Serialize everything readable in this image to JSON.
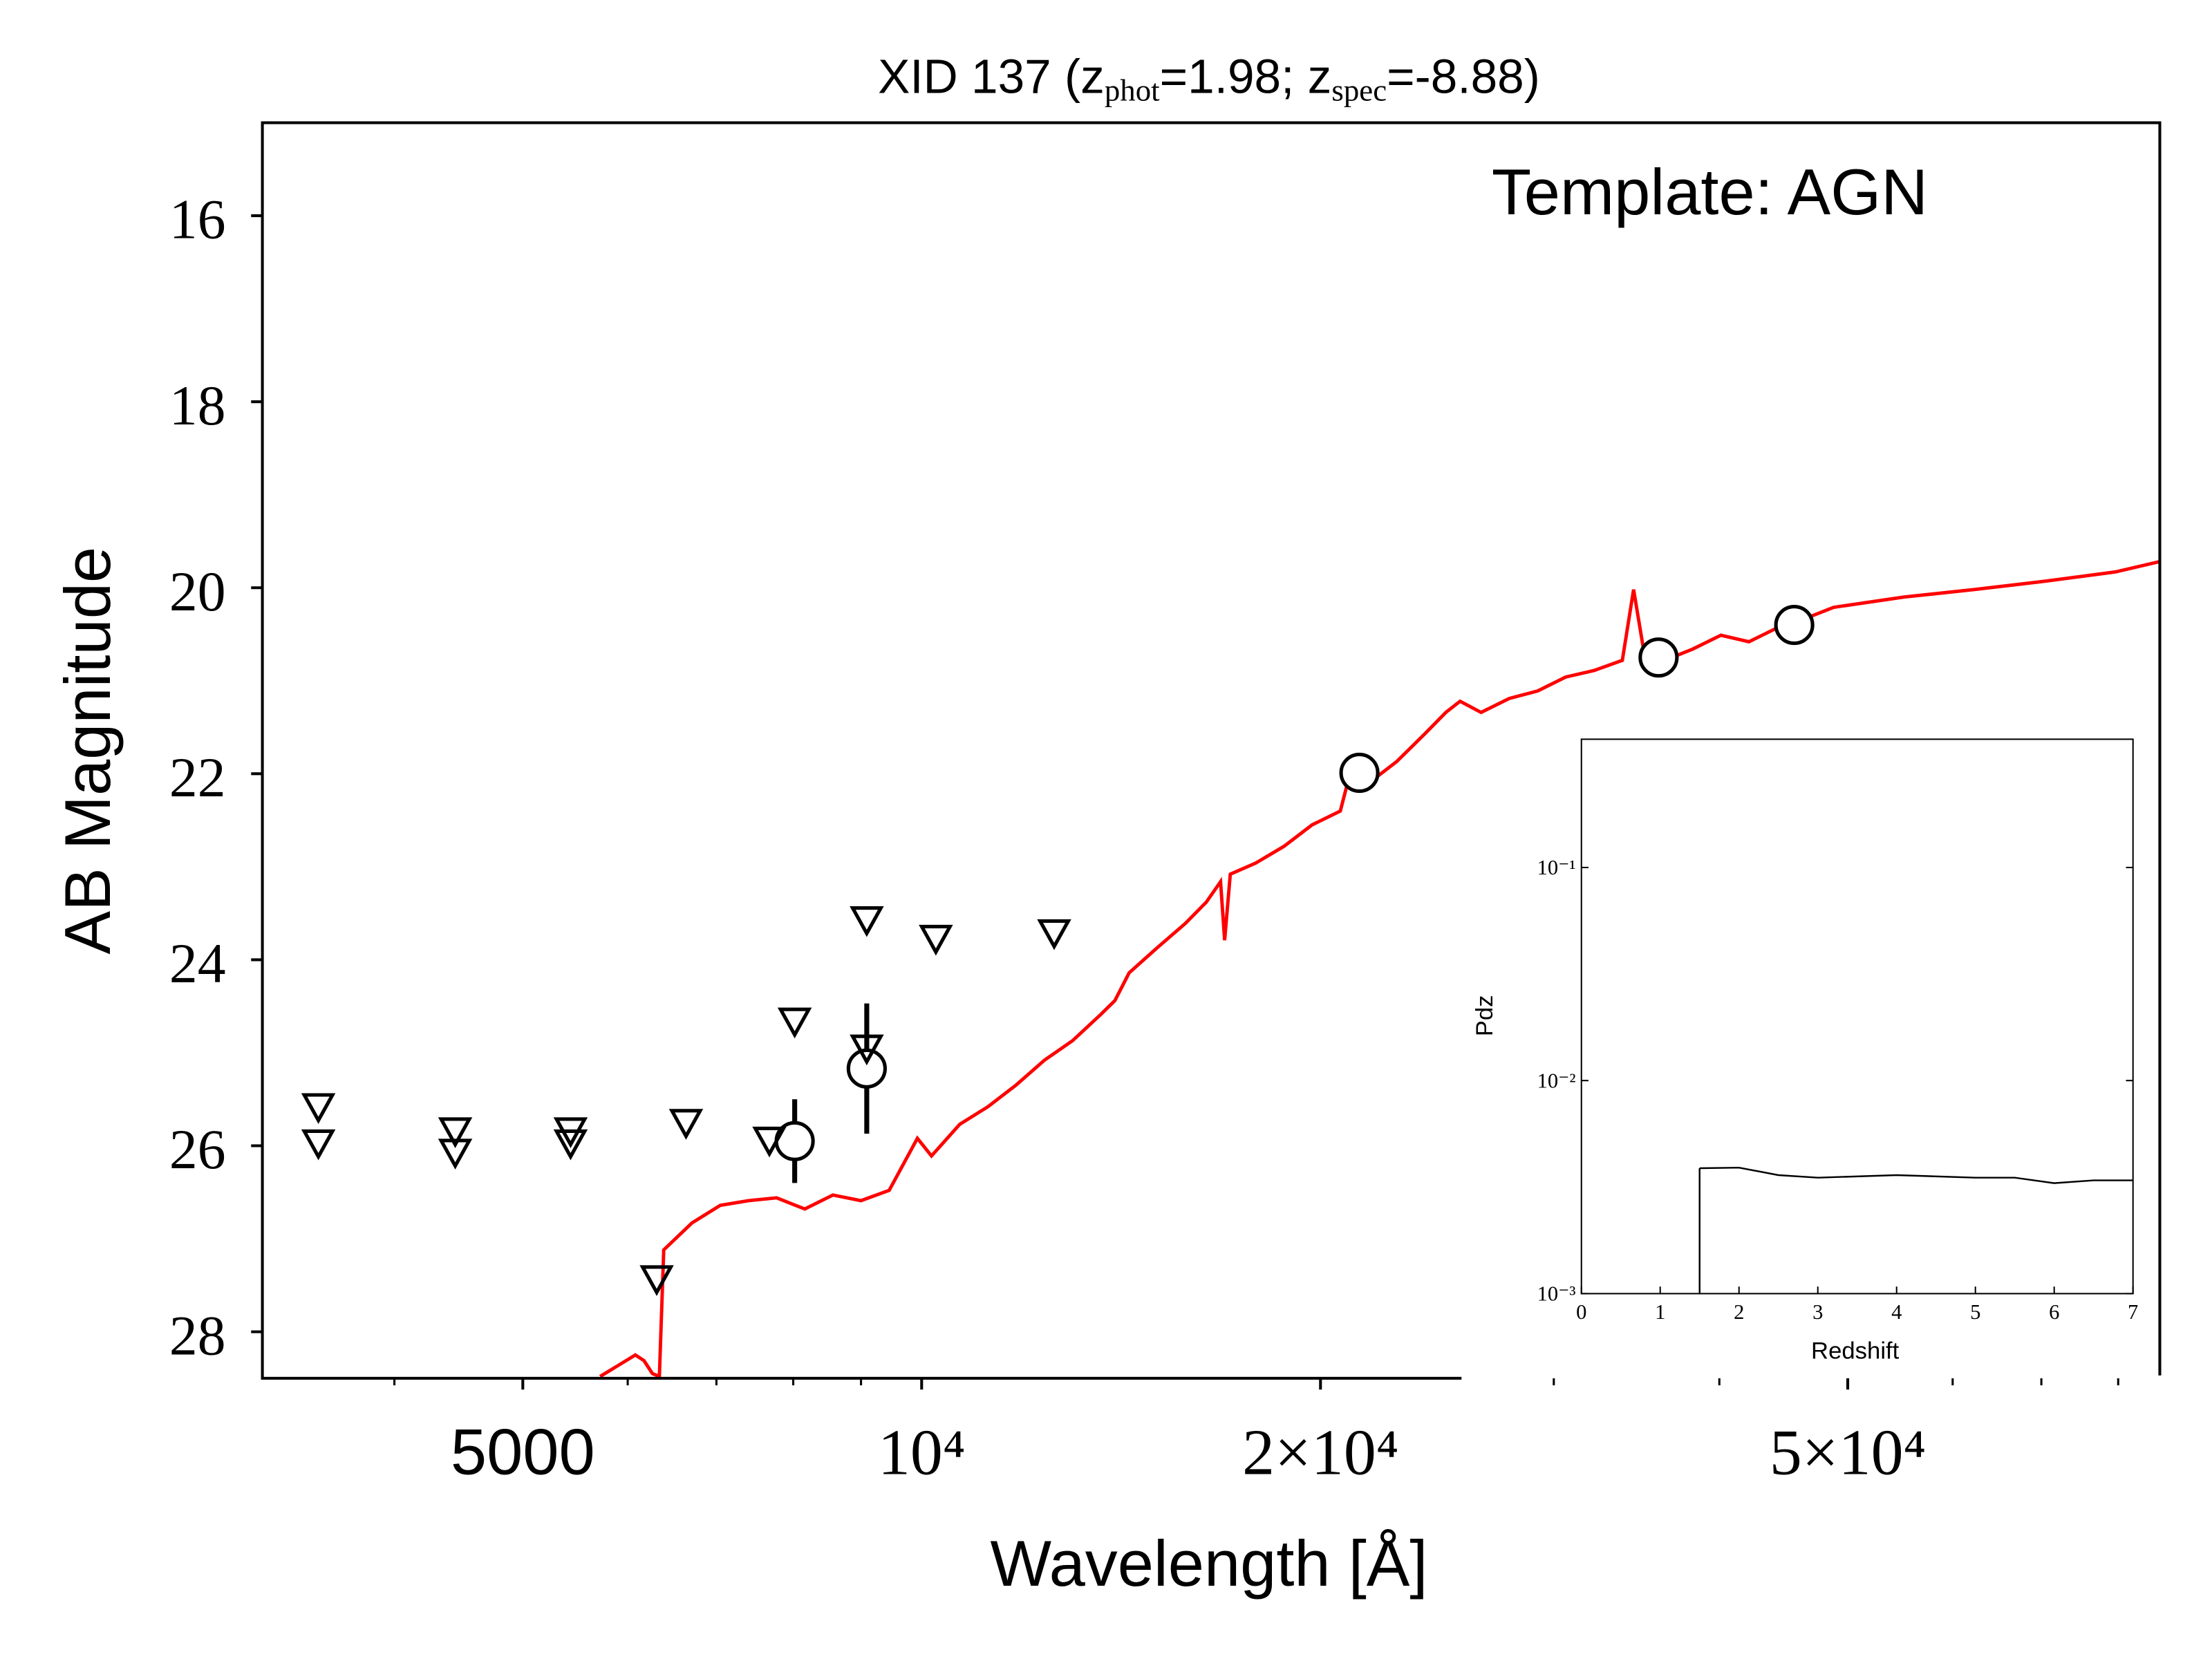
{
  "chart_data": [
    {
      "type": "line",
      "title": [
        {
          "text": "XID 137 (z"
        },
        {
          "sub": "phot"
        },
        {
          "text": "=1.98; z"
        },
        {
          "sub": "spec"
        },
        {
          "text": "=-8.88)"
        }
      ],
      "annotation": "Template: AGN",
      "x_label": "Wavelength [Å]",
      "y_label": "AB Magnitude",
      "xscale": "log",
      "xlim": [
        3180,
        86000
      ],
      "ylim": [
        28.5,
        15
      ],
      "xticks": [
        5000,
        {
          "value": 10000,
          "label": "10⁴"
        },
        {
          "value": 20000,
          "label": "2×10⁴"
        },
        {
          "value": 50000,
          "label": "5×10⁴"
        }
      ],
      "xminorticks": [
        4000,
        6000,
        7000,
        8000,
        9000,
        30000,
        40000,
        60000,
        70000,
        80000
      ],
      "yticks": [
        16,
        18,
        20,
        22,
        24,
        26,
        28
      ],
      "series": [
        {
          "marker": "none",
          "color": "#ff0000",
          "x": [
            5719,
            6081,
            6172,
            6263,
            6340,
            6387,
            6709,
            7047,
            7401,
            7771,
            8162,
            8571,
            9000,
            9452,
            9927,
            10172,
            10684,
            11220,
            11780,
            12380,
            13000,
            13650,
            13990,
            14340,
            15060,
            15810,
            16400,
            16810,
            16930,
            17100,
            17870,
            18770,
            19710,
            20700,
            20960,
            21750,
            22830,
            23980,
            24870,
            25490,
            26440,
            27770,
            29170,
            30630,
            32170,
            33790,
            34460,
            35060,
            36370,
            38190,
            40110,
            42120,
            44240,
            46450,
            48790,
            55140,
            62320,
            70450,
            79630,
            85900
          ],
          "values": [
            28.48,
            28.25,
            28.31,
            28.45,
            28.48,
            27.12,
            26.83,
            26.64,
            26.59,
            26.56,
            26.68,
            26.53,
            26.59,
            26.48,
            25.92,
            26.11,
            25.77,
            25.58,
            25.35,
            25.08,
            24.87,
            24.59,
            24.44,
            24.14,
            23.87,
            23.61,
            23.38,
            23.16,
            23.79,
            23.08,
            22.96,
            22.78,
            22.55,
            22.4,
            22.1,
            22.1,
            21.87,
            21.57,
            21.34,
            21.22,
            21.34,
            21.19,
            21.11,
            20.96,
            20.89,
            20.78,
            20.02,
            20.66,
            20.78,
            20.66,
            20.51,
            20.58,
            20.43,
            20.33,
            20.21,
            20.1,
            20.02,
            19.93,
            19.83,
            19.72
          ]
        },
        {
          "marker": "circle",
          "color": "#000000",
          "x": [
            8020,
            9090,
            21400,
            35990,
            45560
          ],
          "values": [
            25.95,
            25.17,
            21.99,
            20.75,
            20.4
          ],
          "errors": [
            0.45,
            0.7,
            0.15,
            0.05,
            0.05
          ]
        },
        {
          "marker": "triangle-down",
          "color": "#000000",
          "x": [
            3505,
            3505,
            4446,
            4446,
            5433,
            5433,
            6640,
            7675,
            8020,
            9090,
            9090,
            10250,
            12590,
            6310
          ],
          "values": [
            25.59,
            25.98,
            25.85,
            26.08,
            25.85,
            25.98,
            25.76,
            25.95,
            24.67,
            23.58,
            24.96,
            23.78,
            23.72,
            27.44
          ]
        }
      ]
    },
    {
      "type": "line",
      "x_label": "Redshift",
      "y_label": "Pdz",
      "yscale": "log",
      "xlim": [
        0,
        7
      ],
      "ylim": [
        0.001,
        0.4
      ],
      "xticks": [
        0,
        1,
        2,
        3,
        4,
        5,
        6,
        7
      ],
      "yticks": [
        {
          "value": 0.001,
          "label": "10⁻³"
        },
        {
          "value": 0.01,
          "label": "10⁻²"
        },
        {
          "value": 0.1,
          "label": "10⁻¹"
        }
      ],
      "series": [
        {
          "marker": "none",
          "color": "#000000",
          "x": [
            1.5,
            2.0,
            2.5,
            3.0,
            4.0,
            5.0,
            5.5,
            6.0,
            6.5,
            7.0
          ],
          "values": [
            0.00388,
            0.0039,
            0.0036,
            0.0035,
            0.0036,
            0.0035,
            0.0035,
            0.0033,
            0.0034,
            0.0034
          ]
        }
      ]
    }
  ]
}
